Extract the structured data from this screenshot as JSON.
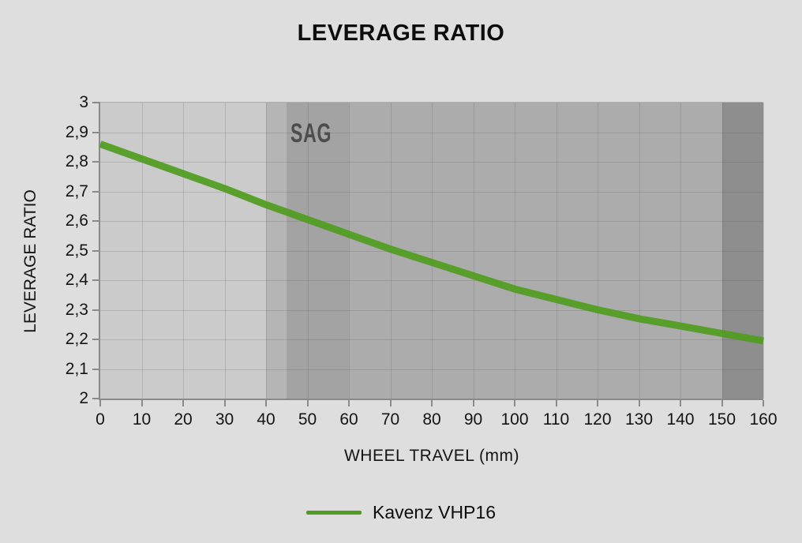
{
  "title": "LEVERAGE RATIO",
  "colors": {
    "page_bg": "#dedede",
    "plot_bg": "#cbcbcb",
    "curve": "#4f9c20",
    "axis": "#8a8a8a",
    "grid": "rgba(90,90,90,0.22)",
    "text": "#141414",
    "sag_text": "#4d4d4d"
  },
  "chart_data": {
    "type": "line",
    "title": "LEVERAGE RATIO",
    "xlabel": "WHEEL TRAVEL (mm)",
    "ylabel": "LEVERAGE RATIO",
    "x": [
      0,
      10,
      20,
      30,
      40,
      50,
      60,
      70,
      80,
      90,
      100,
      110,
      120,
      130,
      140,
      150,
      160
    ],
    "series": [
      {
        "name": "Kavenz VHP16",
        "color": "#4f9c20",
        "values": [
          2.86,
          2.81,
          2.76,
          2.71,
          2.655,
          2.605,
          2.555,
          2.505,
          2.46,
          2.415,
          2.37,
          2.335,
          2.3,
          2.27,
          2.245,
          2.22,
          2.195
        ]
      }
    ],
    "xlim": [
      0,
      160
    ],
    "ylim": [
      2,
      3
    ],
    "x_tick_values": [
      0,
      10,
      20,
      30,
      40,
      50,
      60,
      70,
      80,
      90,
      100,
      110,
      120,
      130,
      140,
      150,
      160
    ],
    "x_tick_labels": [
      "0",
      "10",
      "20",
      "30",
      "40",
      "50",
      "60",
      "70",
      "80",
      "90",
      "100",
      "110",
      "120",
      "130",
      "140",
      "150",
      "160"
    ],
    "y_tick_values": [
      3.0,
      2.9,
      2.8,
      2.7,
      2.6,
      2.5,
      2.4,
      2.3,
      2.2,
      2.1,
      2.0
    ],
    "y_tick_labels": [
      "3",
      "2,9",
      "2,8",
      "2,7",
      "2,6",
      "2,5",
      "2,4",
      "2,3",
      "2,2",
      "2,1",
      "2"
    ],
    "grid": true,
    "legend_position": "bottom",
    "sag_label": "SAG",
    "bands": [
      {
        "name": "pre-sag-band",
        "from": 40,
        "to": 45,
        "color": "#b5b5b5"
      },
      {
        "name": "sag-band",
        "from": 45,
        "to": 60,
        "color": "#a3a3a3",
        "label": "SAG"
      },
      {
        "name": "mid-travel-band",
        "from": 60,
        "to": 150,
        "color": "#acacac"
      },
      {
        "name": "end-travel-band",
        "from": 150,
        "to": 160,
        "color": "#8e8e8e"
      }
    ]
  }
}
